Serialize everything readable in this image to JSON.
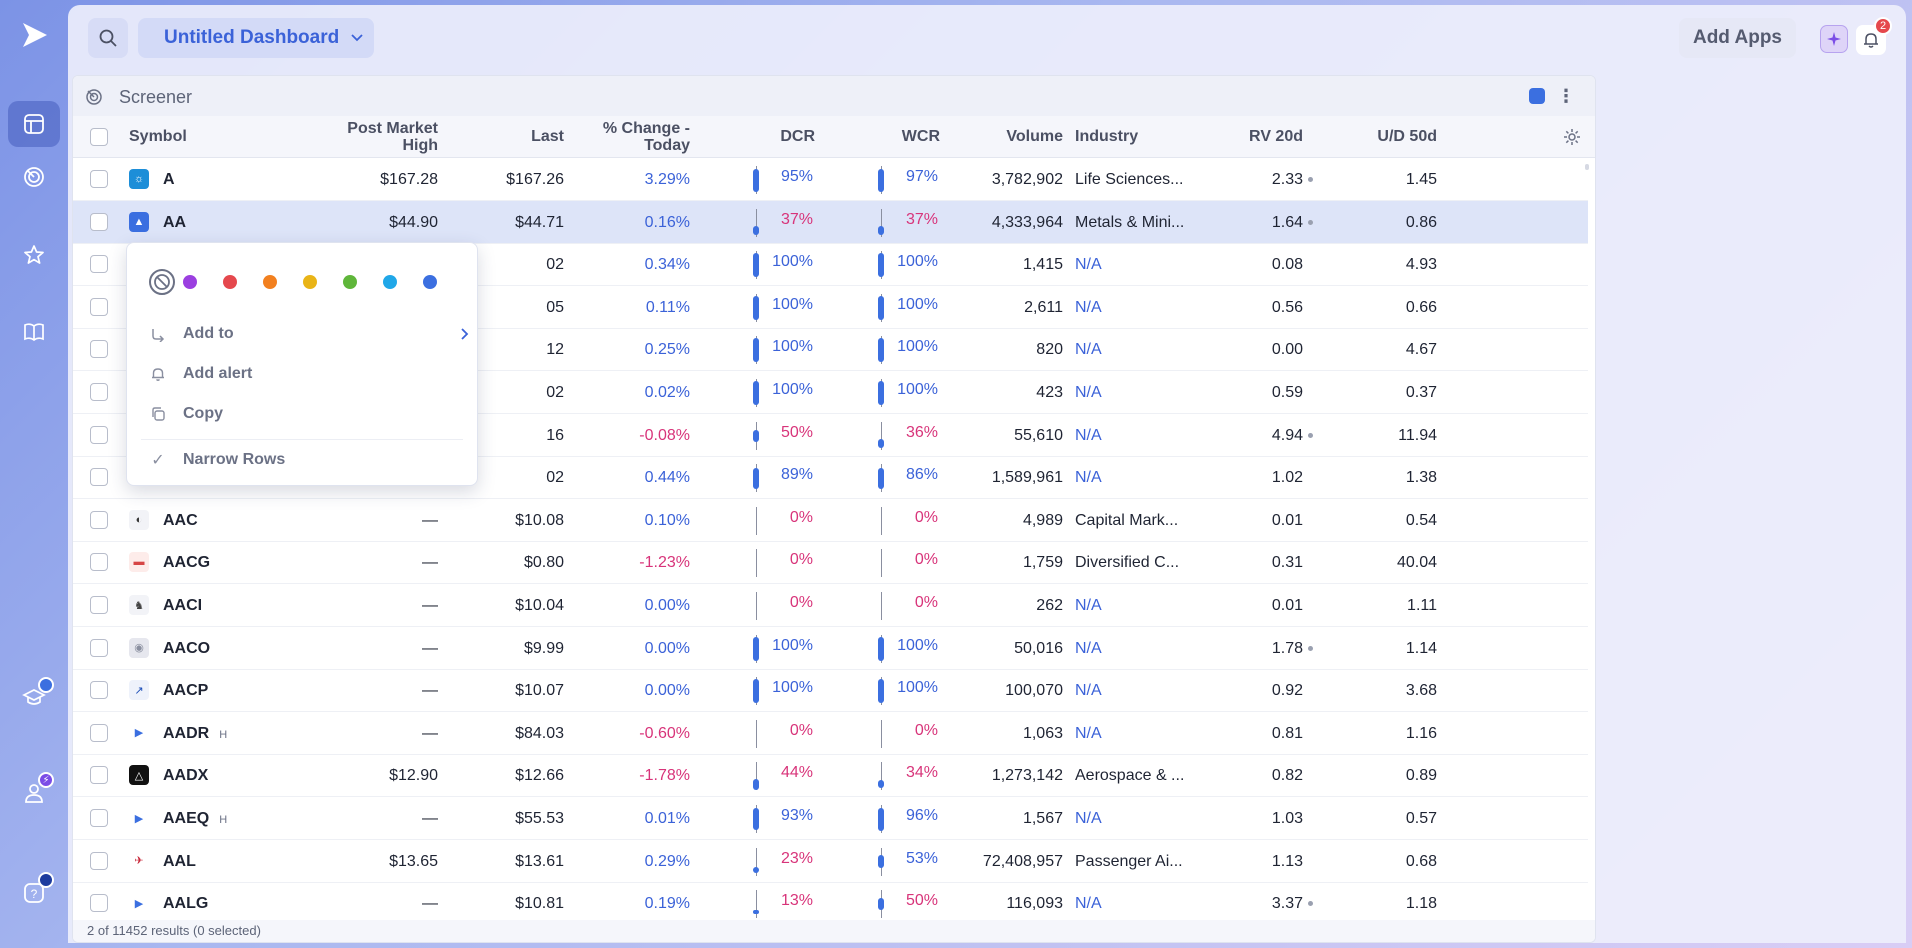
{
  "header": {
    "dashboard_title": "Untitled Dashboard",
    "add_apps_label": "Add Apps",
    "notification_count": "2"
  },
  "panel": {
    "title": "Screener",
    "footer": "2 of 11452 results (0 selected)"
  },
  "columns": {
    "symbol": "Symbol",
    "post_market_high": "Post Market High",
    "last": "Last",
    "change": "% Change - Today",
    "dcr": "DCR",
    "wcr": "WCR",
    "volume": "Volume",
    "industry": "Industry",
    "rv20d": "RV 20d",
    "ud50d": "U/D 50d"
  },
  "context_menu": {
    "swatches": [
      "#9b3fe0",
      "#e5484d",
      "#f2801f",
      "#e9b417",
      "#5fb63a",
      "#20a7e8",
      "#3b6fe0"
    ],
    "add_to": "Add to",
    "add_alert": "Add alert",
    "copy": "Copy",
    "narrow_rows": "Narrow Rows"
  },
  "rows": [
    {
      "symbol": "A",
      "h": "",
      "pmh": "$167.28",
      "last": "$167.26",
      "chg": "3.29%",
      "chg_dir": "pos",
      "dcr": "95%",
      "dcr_v": 0.95,
      "dcr_dir": "pos",
      "wcr": "97%",
      "wcr_v": 0.97,
      "wcr_dir": "pos",
      "volume": "3,782,902",
      "industry": "Life Sciences...",
      "rv": "2.33",
      "rv_dot": true,
      "ud": "1.45",
      "icon": "sun-icon",
      "icon_bg": "#1d8ed8",
      "icon_char": "☼",
      "icon_fg": "#fff"
    },
    {
      "symbol": "AA",
      "h": "",
      "pmh": "$44.90",
      "last": "$44.71",
      "chg": "0.16%",
      "chg_dir": "pos",
      "dcr": "37%",
      "dcr_v": 0.37,
      "dcr_dir": "neg",
      "wcr": "37%",
      "wcr_v": 0.37,
      "wcr_dir": "neg",
      "volume": "4,333,964",
      "industry": "Metals & Mini...",
      "rv": "1.64",
      "rv_dot": true,
      "ud": "0.86",
      "icon": "alcoa-logo-icon",
      "icon_bg": "#3b6fe0",
      "icon_char": "▲",
      "icon_fg": "#fff",
      "selected": true
    },
    {
      "symbol": "",
      "h": "",
      "pmh": "",
      "last": "02",
      "chg": "0.34%",
      "chg_dir": "pos",
      "dcr": "100%",
      "dcr_v": 1,
      "dcr_dir": "pos",
      "wcr": "100%",
      "wcr_v": 1,
      "wcr_dir": "pos",
      "volume": "1,415",
      "industry": "N/A",
      "rv": "0.08",
      "rv_dot": false,
      "ud": "4.93",
      "icon": "",
      "icon_bg": "",
      "icon_char": "",
      "icon_fg": ""
    },
    {
      "symbol": "",
      "h": "",
      "pmh": "",
      "last": "05",
      "chg": "0.11%",
      "chg_dir": "pos",
      "dcr": "100%",
      "dcr_v": 1,
      "dcr_dir": "pos",
      "wcr": "100%",
      "wcr_v": 1,
      "wcr_dir": "pos",
      "volume": "2,611",
      "industry": "N/A",
      "rv": "0.56",
      "rv_dot": false,
      "ud": "0.66",
      "icon": "",
      "icon_bg": "",
      "icon_char": "",
      "icon_fg": ""
    },
    {
      "symbol": "",
      "h": "",
      "pmh": "",
      "last": "12",
      "chg": "0.25%",
      "chg_dir": "pos",
      "dcr": "100%",
      "dcr_v": 1,
      "dcr_dir": "pos",
      "wcr": "100%",
      "wcr_v": 1,
      "wcr_dir": "pos",
      "volume": "820",
      "industry": "N/A",
      "rv": "0.00",
      "rv_dot": false,
      "ud": "4.67",
      "icon": "",
      "icon_bg": "",
      "icon_char": "",
      "icon_fg": ""
    },
    {
      "symbol": "",
      "h": "",
      "pmh": "",
      "last": "02",
      "chg": "0.02%",
      "chg_dir": "pos",
      "dcr": "100%",
      "dcr_v": 1,
      "dcr_dir": "pos",
      "wcr": "100%",
      "wcr_v": 1,
      "wcr_dir": "pos",
      "volume": "423",
      "industry": "N/A",
      "rv": "0.59",
      "rv_dot": false,
      "ud": "0.37",
      "icon": "",
      "icon_bg": "",
      "icon_char": "",
      "icon_fg": ""
    },
    {
      "symbol": "",
      "h": "",
      "pmh": "",
      "last": "16",
      "chg": "-0.08%",
      "chg_dir": "neg",
      "dcr": "50%",
      "dcr_v": 0.5,
      "dcr_dir": "neg",
      "wcr": "36%",
      "wcr_v": 0.36,
      "wcr_dir": "neg",
      "volume": "55,610",
      "industry": "N/A",
      "rv": "4.94",
      "rv_dot": true,
      "ud": "11.94",
      "icon": "",
      "icon_bg": "",
      "icon_char": "",
      "icon_fg": ""
    },
    {
      "symbol": "",
      "h": "",
      "pmh": "",
      "last": "02",
      "chg": "0.44%",
      "chg_dir": "pos",
      "dcr": "89%",
      "dcr_v": 0.89,
      "dcr_dir": "pos",
      "wcr": "86%",
      "wcr_v": 0.86,
      "wcr_dir": "pos",
      "volume": "1,589,961",
      "industry": "N/A",
      "rv": "1.02",
      "rv_dot": false,
      "ud": "1.38",
      "icon": "",
      "icon_bg": "",
      "icon_char": "",
      "icon_fg": ""
    },
    {
      "symbol": "AAC",
      "h": "",
      "pmh": "—",
      "last": "$10.08",
      "chg": "0.10%",
      "chg_dir": "pos",
      "dcr": "0%",
      "dcr_v": 0,
      "dcr_dir": "neg",
      "wcr": "0%",
      "wcr_v": 0,
      "wcr_dir": "neg",
      "volume": "4,989",
      "industry": "Capital Mark...",
      "rv": "0.01",
      "rv_dot": false,
      "ud": "0.54",
      "icon": "ring-icon",
      "icon_bg": "#f2f3f7",
      "icon_char": "◐",
      "icon_fg": "#333"
    },
    {
      "symbol": "AACG",
      "h": "",
      "pmh": "—",
      "last": "$0.80",
      "chg": "-1.23%",
      "chg_dir": "neg",
      "dcr": "0%",
      "dcr_v": 0,
      "dcr_dir": "neg",
      "wcr": "0%",
      "wcr_v": 0,
      "wcr_dir": "neg",
      "volume": "1,759",
      "industry": "Diversified C...",
      "rv": "0.31",
      "rv_dot": false,
      "ud": "40.04",
      "icon": "car-icon",
      "icon_bg": "#fdecea",
      "icon_char": "▬",
      "icon_fg": "#d64545"
    },
    {
      "symbol": "AACI",
      "h": "",
      "pmh": "—",
      "last": "$10.04",
      "chg": "0.00%",
      "chg_dir": "pos",
      "dcr": "0%",
      "dcr_v": 0,
      "dcr_dir": "neg",
      "wcr": "0%",
      "wcr_v": 0,
      "wcr_dir": "neg",
      "volume": "262",
      "industry": "N/A",
      "rv": "0.01",
      "rv_dot": false,
      "ud": "1.11",
      "icon": "statue-icon",
      "icon_bg": "#f2f3f7",
      "icon_char": "♞",
      "icon_fg": "#444"
    },
    {
      "symbol": "AACO",
      "h": "",
      "pmh": "—",
      "last": "$9.99",
      "chg": "0.00%",
      "chg_dir": "pos",
      "dcr": "100%",
      "dcr_v": 1,
      "dcr_dir": "pos",
      "wcr": "100%",
      "wcr_v": 1,
      "wcr_dir": "pos",
      "volume": "50,016",
      "industry": "N/A",
      "rv": "1.78",
      "rv_dot": true,
      "ud": "1.14",
      "icon": "globe-icon",
      "icon_bg": "#e6e7ee",
      "icon_char": "◉",
      "icon_fg": "#8a8f9f"
    },
    {
      "symbol": "AACP",
      "h": "",
      "pmh": "—",
      "last": "$10.07",
      "chg": "0.00%",
      "chg_dir": "pos",
      "dcr": "100%",
      "dcr_v": 1,
      "dcr_dir": "pos",
      "wcr": "100%",
      "wcr_v": 1,
      "wcr_dir": "pos",
      "volume": "100,070",
      "industry": "N/A",
      "rv": "0.92",
      "rv_dot": false,
      "ud": "3.68",
      "icon": "arrow-logo-icon",
      "icon_bg": "#eef2fb",
      "icon_char": "↗",
      "icon_fg": "#1d4fb8"
    },
    {
      "symbol": "AADR",
      "h": "H",
      "pmh": "—",
      "last": "$84.03",
      "chg": "-0.60%",
      "chg_dir": "neg",
      "dcr": "0%",
      "dcr_v": 0,
      "dcr_dir": "neg",
      "wcr": "0%",
      "wcr_v": 0,
      "wcr_dir": "neg",
      "volume": "1,063",
      "industry": "N/A",
      "rv": "0.81",
      "rv_dot": false,
      "ud": "1.16",
      "icon": "play-logo-icon",
      "icon_bg": "#ffffff",
      "icon_char": "▶",
      "icon_fg": "#3b6fe0"
    },
    {
      "symbol": "AADX",
      "h": "",
      "pmh": "$12.90",
      "last": "$12.66",
      "chg": "-1.78%",
      "chg_dir": "neg",
      "dcr": "44%",
      "dcr_v": 0.44,
      "dcr_dir": "neg",
      "wcr": "34%",
      "wcr_v": 0.34,
      "wcr_dir": "neg",
      "volume": "1,273,142",
      "industry": "Aerospace & ...",
      "rv": "0.82",
      "rv_dot": false,
      "ud": "0.89",
      "icon": "triangle-logo-icon",
      "icon_bg": "#111111",
      "icon_char": "△",
      "icon_fg": "#fff"
    },
    {
      "symbol": "AAEQ",
      "h": "H",
      "pmh": "—",
      "last": "$55.53",
      "chg": "0.01%",
      "chg_dir": "pos",
      "dcr": "93%",
      "dcr_v": 0.93,
      "dcr_dir": "pos",
      "wcr": "96%",
      "wcr_v": 0.96,
      "wcr_dir": "pos",
      "volume": "1,567",
      "industry": "N/A",
      "rv": "1.03",
      "rv_dot": false,
      "ud": "0.57",
      "icon": "play-logo-icon",
      "icon_bg": "#ffffff",
      "icon_char": "▶",
      "icon_fg": "#3b6fe0"
    },
    {
      "symbol": "AAL",
      "h": "",
      "pmh": "$13.65",
      "last": "$13.61",
      "chg": "0.29%",
      "chg_dir": "pos",
      "dcr": "23%",
      "dcr_v": 0.23,
      "dcr_dir": "neg",
      "wcr": "53%",
      "wcr_v": 0.53,
      "wcr_dir": "pos",
      "volume": "72,408,957",
      "industry": "Passenger Ai...",
      "rv": "1.13",
      "rv_dot": false,
      "ud": "0.68",
      "icon": "airline-logo-icon",
      "icon_bg": "#ffffff",
      "icon_char": "✈",
      "icon_fg": "#c8283a"
    },
    {
      "symbol": "AALG",
      "h": "",
      "pmh": "—",
      "last": "$10.81",
      "chg": "0.19%",
      "chg_dir": "pos",
      "dcr": "13%",
      "dcr_v": 0.13,
      "dcr_dir": "neg",
      "wcr": "50%",
      "wcr_v": 0.5,
      "wcr_dir": "neg",
      "volume": "116,093",
      "industry": "N/A",
      "rv": "3.37",
      "rv_dot": true,
      "ud": "1.18",
      "icon": "play-logo-icon",
      "icon_bg": "#ffffff",
      "icon_char": "▶",
      "icon_fg": "#3b6fe0"
    }
  ]
}
